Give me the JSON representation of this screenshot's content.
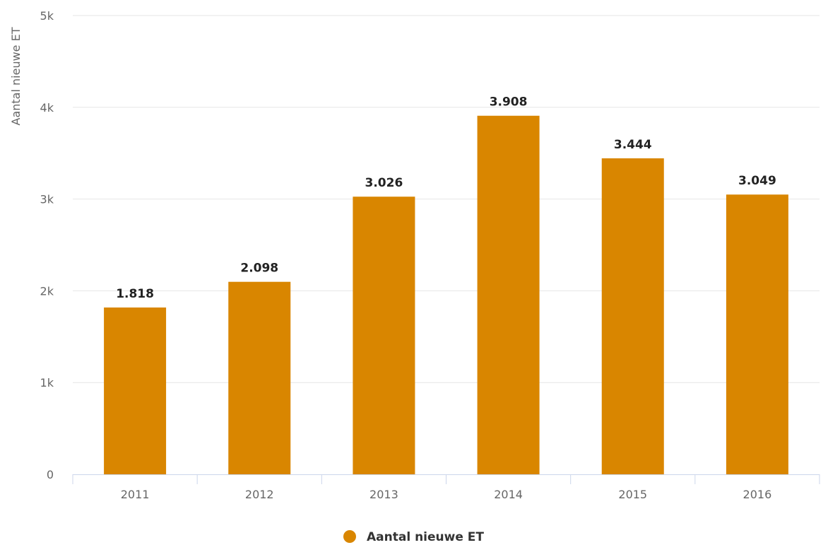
{
  "chart_data": {
    "type": "bar",
    "categories": [
      "2011",
      "2012",
      "2013",
      "2014",
      "2015",
      "2016"
    ],
    "series": [
      {
        "name": "Aantal nieuwe ET",
        "values": [
          1818,
          2098,
          3026,
          3908,
          3444,
          3049
        ]
      }
    ],
    "data_labels": [
      "1.818",
      "2.098",
      "3.026",
      "3.908",
      "3.444",
      "3.049"
    ],
    "ylabel": "Aantal nieuwe ET",
    "ylim": [
      0,
      5000
    ],
    "yticks": [
      0,
      1000,
      2000,
      3000,
      4000,
      5000
    ],
    "ytick_labels": [
      "0",
      "1k",
      "2k",
      "3k",
      "4k",
      "5k"
    ],
    "grid": true,
    "legend_position": "bottom-center",
    "colors": {
      "bar": "#d98600",
      "grid": "#e6e6e6",
      "axis": "#ccd6eb"
    }
  }
}
